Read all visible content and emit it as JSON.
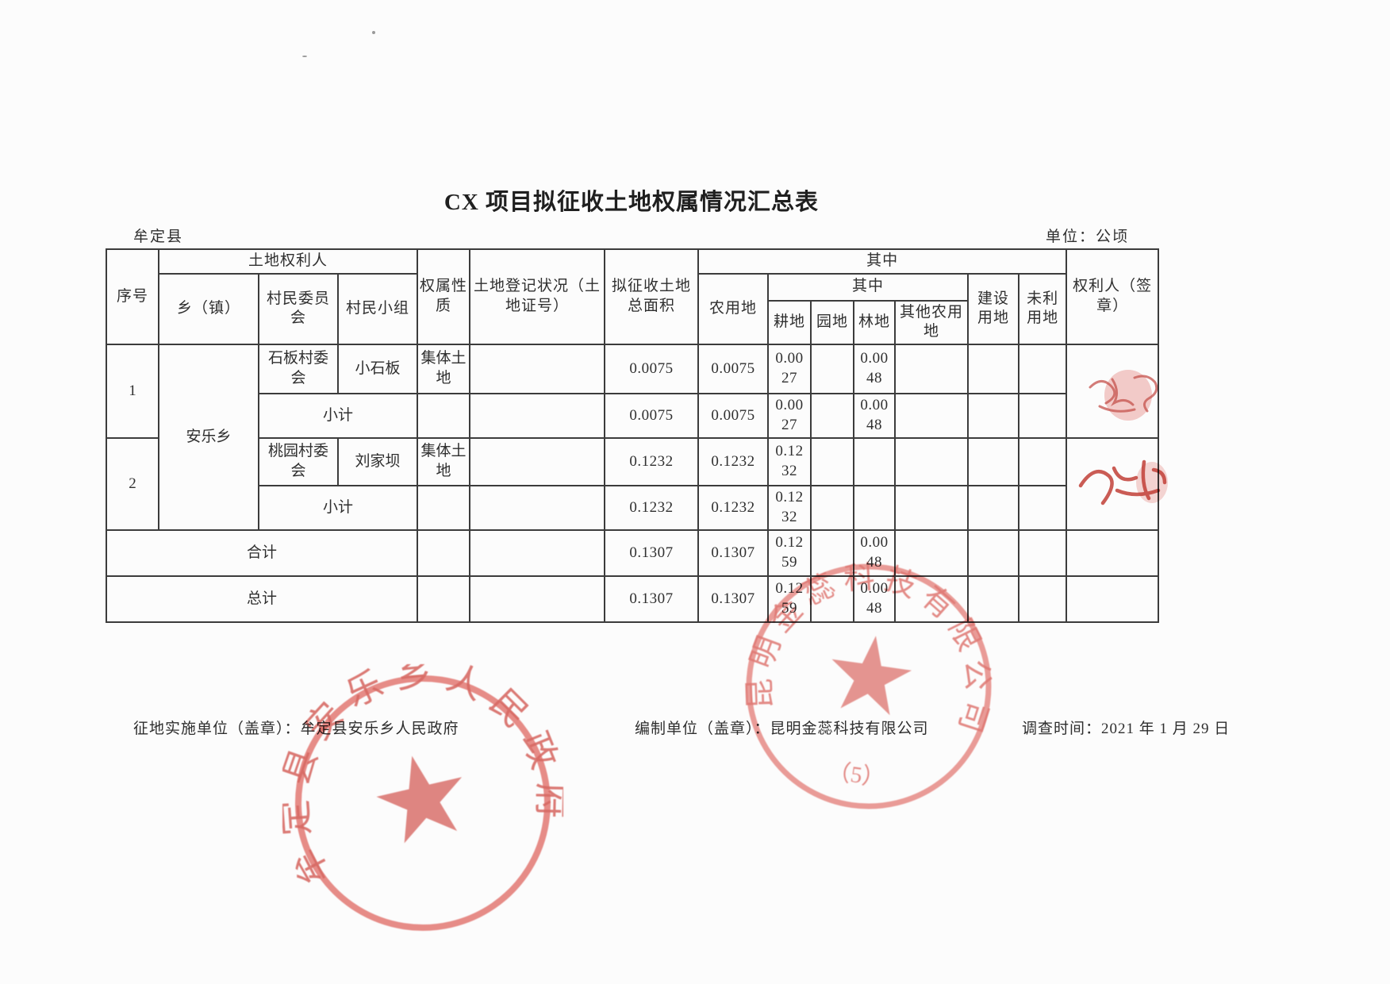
{
  "page": {
    "title": "CX 项目拟征收土地权属情况汇总表",
    "region_label": "牟定县",
    "unit_label": "单位：公顷"
  },
  "table": {
    "headers": {
      "seq": "序号",
      "land_rights_holder": "土地权利人",
      "township": "乡（镇）",
      "village_committee": "村民委员会",
      "village_group": "村民小组",
      "ownership_nature": "权属性质",
      "land_registration": "土地登记状况（土地证号）",
      "proposed_total_area": "拟征收土地总面积",
      "among_which": "其中",
      "agricultural_land": "农用地",
      "among_which_sub": "其中",
      "cultivated_land": "耕地",
      "garden_land": "园地",
      "forest_land": "林地",
      "other_agricultural_land": "其他农用地",
      "construction_land": "建设用地",
      "unused_land": "未利用地",
      "rights_holder_signature": "权利人（签章）"
    },
    "rows": {
      "r1": {
        "seq": "1",
        "township": "安乐乡",
        "committee": "石板村委会",
        "group": "小石板",
        "nature": "集体土地",
        "total": "0.0075",
        "agri": "0.0075",
        "cultivated": "0.0027",
        "forest": "0.0048"
      },
      "r1_subtotal": {
        "label": "小计",
        "total": "0.0075",
        "agri": "0.0075",
        "cultivated": "0.0027",
        "forest": "0.0048"
      },
      "r2": {
        "seq": "2",
        "committee": "桃园村委会",
        "group": "刘家坝",
        "nature": "集体土地",
        "total": "0.1232",
        "agri": "0.1232",
        "cultivated": "0.1232"
      },
      "r2_subtotal": {
        "label": "小计",
        "total": "0.1232",
        "agri": "0.1232",
        "cultivated": "0.1232"
      },
      "total": {
        "label": "合计",
        "total": "0.1307",
        "agri": "0.1307",
        "cultivated": "0.1259",
        "forest": "0.0048"
      },
      "grand_total": {
        "label": "总计",
        "total": "0.1307",
        "agri": "0.1307",
        "cultivated": "0.1259",
        "forest": "0.0048"
      }
    }
  },
  "stamps": {
    "government_seal": "牟定县安乐乡人民政府",
    "company_seal": "昆明金蕊科技有限公司",
    "company_seal_number": "（5）",
    "seal_color": "#d4544d"
  },
  "footer": {
    "implementing_unit": "征地实施单位（盖章）：牟定县安乐乡人民政府",
    "preparing_unit": "编制单位（盖章）：昆明金蕊科技有限公司",
    "survey_date": "调查时间：2021 年 1 月 29 日"
  }
}
